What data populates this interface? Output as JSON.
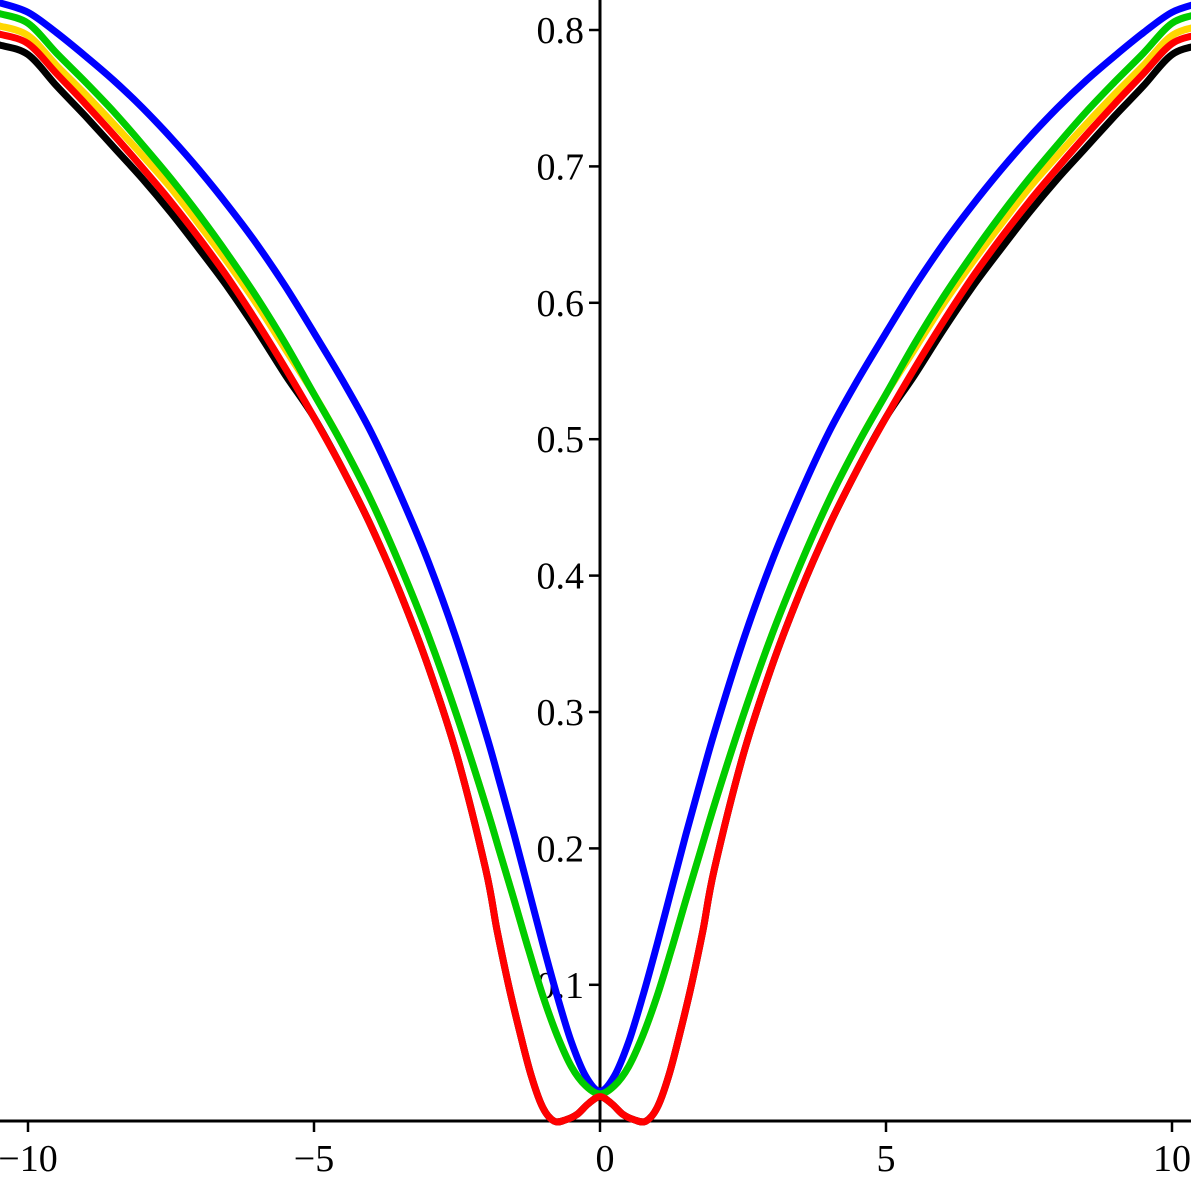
{
  "chart_data": {
    "type": "line",
    "title": "",
    "xlabel": "",
    "ylabel": "",
    "xlim": [
      -10.5,
      10.35
    ],
    "ylim": [
      0,
      0.822
    ],
    "grid": false,
    "legend": null,
    "background": "#ffffff",
    "axis_color": "#000000",
    "x_ticks": [
      -10,
      -5,
      0,
      5,
      10
    ],
    "x_tick_labels": [
      "−10",
      "−5",
      "0",
      "5",
      "10"
    ],
    "y_ticks": [
      0.1,
      0.2,
      0.3,
      0.4,
      0.5,
      0.6,
      0.7,
      0.8
    ],
    "y_tick_labels": [
      "0.1",
      "0.2",
      "0.3",
      "0.4",
      "0.5",
      "0.6",
      "0.7",
      "0.8"
    ],
    "symmetry": "curves are even functions; listed y-values apply to both +x and -x",
    "series": [
      {
        "name": "black-curve",
        "color": "#000000",
        "x": [
          0,
          0.2,
          0.4,
          0.6,
          0.8,
          1,
          1.2,
          1.4,
          1.6,
          1.8,
          2,
          2.5,
          3,
          3.5,
          4,
          4.5,
          5,
          5.5,
          6,
          6.5,
          7,
          7.5,
          8,
          8.5,
          9,
          9.5,
          10,
          10.5
        ],
        "y": [
          0.018,
          0.013,
          0.005,
          0.001,
          0.0,
          0.01,
          0.033,
          0.065,
          0.1,
          0.14,
          0.185,
          0.268,
          0.333,
          0.388,
          0.436,
          0.478,
          0.516,
          0.547,
          0.58,
          0.611,
          0.639,
          0.666,
          0.691,
          0.714,
          0.737,
          0.759,
          0.782,
          0.789
        ]
      },
      {
        "name": "yellow-curve",
        "color": "#ffd700",
        "x": [
          0,
          0.25,
          0.5,
          0.75,
          1,
          1.25,
          1.5,
          1.75,
          2,
          2.5,
          3,
          3.5,
          4,
          4.5,
          5,
          5.5,
          6,
          6.5,
          7,
          7.5,
          8,
          8.5,
          9,
          9.5,
          10,
          10.5
        ],
        "y": [
          0.02,
          0.026,
          0.04,
          0.063,
          0.092,
          0.126,
          0.162,
          0.197,
          0.232,
          0.297,
          0.356,
          0.408,
          0.455,
          0.496,
          0.533,
          0.566,
          0.599,
          0.629,
          0.657,
          0.684,
          0.708,
          0.731,
          0.753,
          0.774,
          0.796,
          0.803
        ]
      },
      {
        "name": "blue-curve",
        "color": "#0000ff",
        "x": [
          0,
          0.25,
          0.5,
          0.75,
          1,
          1.25,
          1.5,
          1.75,
          2,
          2.5,
          3,
          3.5,
          4,
          4.5,
          5,
          5.5,
          6,
          6.5,
          7,
          7.5,
          8,
          8.5,
          9,
          9.5,
          10,
          10.5
        ],
        "y": [
          0.022,
          0.033,
          0.058,
          0.092,
          0.13,
          0.17,
          0.21,
          0.248,
          0.285,
          0.352,
          0.41,
          0.46,
          0.505,
          0.543,
          0.578,
          0.612,
          0.643,
          0.671,
          0.697,
          0.721,
          0.743,
          0.763,
          0.781,
          0.798,
          0.813,
          0.82
        ]
      },
      {
        "name": "green-curve",
        "color": "#00cc00",
        "x": [
          0,
          0.25,
          0.5,
          0.75,
          1,
          1.25,
          1.5,
          1.75,
          2,
          2.5,
          3,
          3.5,
          4,
          4.5,
          5,
          5.5,
          6,
          6.5,
          7,
          7.5,
          8,
          8.5,
          9,
          9.5,
          10,
          10.5
        ],
        "y": [
          0.02,
          0.026,
          0.04,
          0.063,
          0.092,
          0.126,
          0.162,
          0.197,
          0.232,
          0.297,
          0.356,
          0.408,
          0.455,
          0.496,
          0.533,
          0.57,
          0.604,
          0.635,
          0.664,
          0.691,
          0.716,
          0.74,
          0.762,
          0.783,
          0.805,
          0.812
        ]
      },
      {
        "name": "red-curve",
        "color": "#ff0000",
        "x": [
          0,
          0.2,
          0.4,
          0.6,
          0.8,
          1,
          1.2,
          1.4,
          1.6,
          1.8,
          2,
          2.5,
          3,
          3.5,
          4,
          4.5,
          5,
          5.5,
          6,
          6.5,
          7,
          7.5,
          8,
          8.5,
          9,
          9.5,
          10,
          10.5
        ],
        "y": [
          0.018,
          0.013,
          0.005,
          0.001,
          0.0,
          0.01,
          0.033,
          0.065,
          0.1,
          0.14,
          0.185,
          0.268,
          0.333,
          0.388,
          0.436,
          0.478,
          0.516,
          0.552,
          0.586,
          0.618,
          0.647,
          0.674,
          0.699,
          0.723,
          0.746,
          0.768,
          0.79,
          0.797
        ]
      }
    ]
  }
}
